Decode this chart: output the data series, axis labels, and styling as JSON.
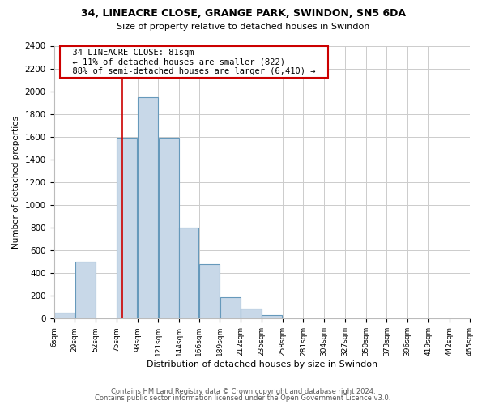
{
  "title1": "34, LINEACRE CLOSE, GRANGE PARK, SWINDON, SN5 6DA",
  "title2": "Size of property relative to detached houses in Swindon",
  "xlabel": "Distribution of detached houses by size in Swindon",
  "ylabel": "Number of detached properties",
  "bin_edges": [
    6,
    29,
    52,
    75,
    98,
    121,
    144,
    166,
    189,
    212,
    235,
    258,
    281,
    304,
    327,
    350,
    373,
    396,
    419,
    442,
    465
  ],
  "bar_heights": [
    50,
    500,
    0,
    1590,
    1950,
    1590,
    800,
    480,
    190,
    90,
    30,
    0,
    0,
    0,
    0,
    0,
    0,
    0,
    0,
    0
  ],
  "bar_color": "#c8d8e8",
  "bar_edge_color": "#6699bb",
  "ylim": [
    0,
    2400
  ],
  "yticks": [
    0,
    200,
    400,
    600,
    800,
    1000,
    1200,
    1400,
    1600,
    1800,
    2000,
    2200,
    2400
  ],
  "xtick_labels": [
    "6sqm",
    "29sqm",
    "52sqm",
    "75sqm",
    "98sqm",
    "121sqm",
    "144sqm",
    "166sqm",
    "189sqm",
    "212sqm",
    "235sqm",
    "258sqm",
    "281sqm",
    "304sqm",
    "327sqm",
    "350sqm",
    "373sqm",
    "396sqm",
    "419sqm",
    "442sqm",
    "465sqm"
  ],
  "vline_x": 81,
  "vline_color": "#cc0000",
  "annotation_title": "34 LINEACRE CLOSE: 81sqm",
  "annotation_line1": "← 11% of detached houses are smaller (822)",
  "annotation_line2": "88% of semi-detached houses are larger (6,410) →",
  "footer1": "Contains HM Land Registry data © Crown copyright and database right 2024.",
  "footer2": "Contains public sector information licensed under the Open Government Licence v3.0.",
  "background_color": "#ffffff",
  "grid_color": "#cccccc"
}
